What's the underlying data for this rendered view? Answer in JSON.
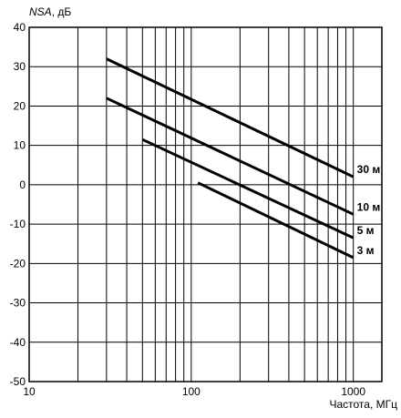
{
  "chart_data": {
    "type": "line",
    "ylabel": "NSA, дБ",
    "xlabel": "Частота, МГц",
    "xscale": "log",
    "xlim": [
      10,
      1500
    ],
    "ylim": [
      -50,
      40
    ],
    "xticks": [
      10,
      100,
      1000
    ],
    "xticklabels": [
      "10",
      "100",
      "1000"
    ],
    "yticks": [
      40,
      30,
      20,
      10,
      0,
      -10,
      -20,
      -30,
      -40,
      -50
    ],
    "yticklabels": [
      "40",
      "30",
      "20",
      "10",
      "0",
      "-10",
      "-20",
      "-30",
      "-40",
      "-50"
    ],
    "grid": true,
    "series": [
      {
        "name": "30 м",
        "x": [
          30,
          1000
        ],
        "y": [
          32,
          2
        ]
      },
      {
        "name": "10 м",
        "x": [
          30,
          1000
        ],
        "y": [
          22,
          -7.5
        ]
      },
      {
        "name": "5 м",
        "x": [
          50,
          1000
        ],
        "y": [
          11.5,
          -13.5
        ]
      },
      {
        "name": "3 м",
        "x": [
          110,
          1000
        ],
        "y": [
          0.5,
          -18.5
        ]
      }
    ]
  }
}
